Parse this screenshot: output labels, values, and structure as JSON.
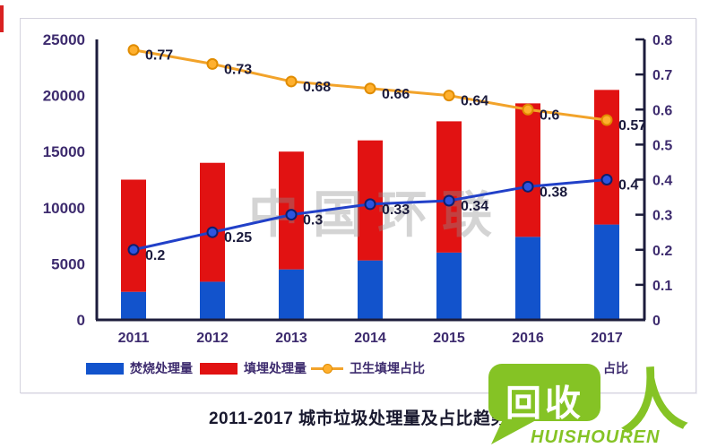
{
  "watermark": {
    "text": "中国环联"
  },
  "caption": {
    "text": "2011-2017 城市垃圾处理量及占比趋势"
  },
  "chart_data": {
    "type": "bar",
    "subtype": "stacked-bars-with-lines-combo",
    "title": "2011-2017 城市垃圾处理量及占比趋势",
    "categories": [
      "2011",
      "2012",
      "2013",
      "2014",
      "2015",
      "2016",
      "2017"
    ],
    "series": [
      {
        "name": "焚烧处理量",
        "type": "bar",
        "stack": "total",
        "color": "#1253cc",
        "values": [
          2500,
          3400,
          4500,
          5300,
          6000,
          7400,
          8500
        ],
        "axis": "left"
      },
      {
        "name": "填埋处理量",
        "type": "bar",
        "stack": "total",
        "color": "#e11212",
        "values": [
          10000,
          10600,
          10500,
          10700,
          11700,
          11900,
          12000
        ],
        "axis": "left"
      },
      {
        "name": "卫生填埋占比",
        "type": "line",
        "color": "#f2a32a",
        "marker_fill": "#ffb02e",
        "marker_stroke": "#e08c00",
        "values": [
          0.77,
          0.73,
          0.68,
          0.66,
          0.64,
          0.6,
          0.57
        ],
        "axis": "right",
        "labels": [
          "0.77",
          "0.73",
          "0.68",
          "0.66",
          "0.64",
          "0.6",
          "0.57"
        ]
      },
      {
        "name": "占比",
        "type": "line",
        "color": "#2140c8",
        "marker_fill": "#2d55e0",
        "marker_stroke": "#0e1e6e",
        "values": [
          0.2,
          0.25,
          0.3,
          0.33,
          0.34,
          0.38,
          0.4
        ],
        "axis": "right",
        "labels": [
          "0.2",
          "0.25",
          "0.3",
          "0.33",
          "0.34",
          "0.38",
          "0.4"
        ]
      }
    ],
    "left_axis": {
      "min": 0,
      "max": 25000,
      "step": 5000,
      "ticks": [
        "0",
        "5000",
        "10000",
        "15000",
        "20000",
        "25000"
      ]
    },
    "right_axis": {
      "min": 0,
      "max": 0.8,
      "step": 0.1,
      "ticks": [
        "0",
        "0.1",
        "0.2",
        "0.3",
        "0.4",
        "0.5",
        "0.6",
        "0.7",
        "0.8"
      ]
    },
    "grid": false,
    "legend_position": "bottom",
    "data_labels": true
  },
  "legend": {
    "items": [
      {
        "label": "焚烧处理量",
        "swatch": "blue-rect"
      },
      {
        "label": "填埋处理量",
        "swatch": "red-rect"
      },
      {
        "label": "卫生填埋占比",
        "swatch": "orange-line-marker"
      },
      {
        "label": "占比",
        "swatch": "partially-hidden-by-logo"
      }
    ]
  },
  "logo": {
    "bubble_text": "回收",
    "person_glyph": "人",
    "subtext": "HUISHOUREN",
    "color": "#85c325"
  },
  "colors": {
    "accent_strip": "#d92121",
    "axis": "#1c1c3c",
    "tick_label": "#3d2b6e",
    "data_label": "#1b1b3d",
    "bar_blue": "#1253cc",
    "bar_red": "#e11212",
    "line_orange": "#f2a32a",
    "line_blue": "#2140c8",
    "watermark": "#8f8f8f",
    "logo_green": "#85c325",
    "panel_border": "#d5d3de"
  }
}
